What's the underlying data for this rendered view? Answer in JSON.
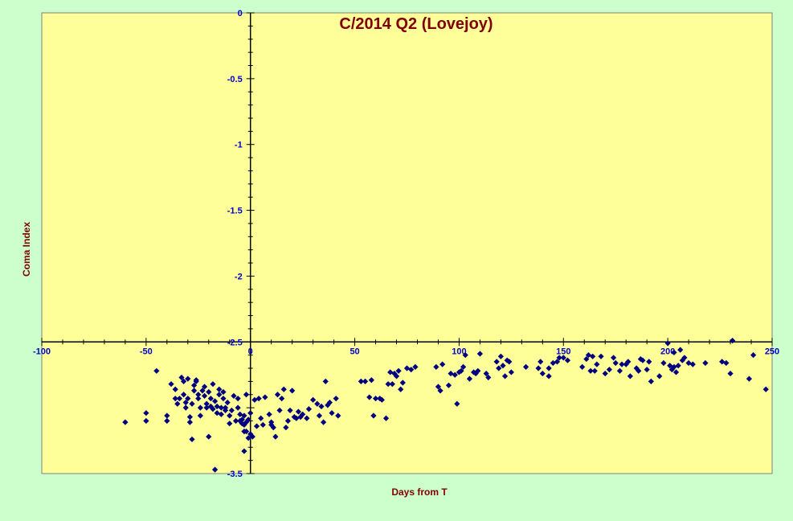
{
  "chart_data": {
    "type": "scatter",
    "title": "C/2014 Q2 (Lovejoy)",
    "xlabel": "Days from T",
    "ylabel": "Coma Index",
    "xlim": [
      -100,
      250
    ],
    "ylim": [
      -3.5,
      0
    ],
    "x_ticks": [
      -100,
      -50,
      0,
      50,
      100,
      150,
      200,
      250
    ],
    "y_ticks": [
      0,
      -0.5,
      -1,
      -1.5,
      -2,
      -2.5,
      -3.5
    ],
    "y_tick_labels": [
      "0",
      "-0.5",
      "-1",
      "-1.5",
      "-2",
      "-2.5",
      "-3.5"
    ],
    "grid": false,
    "legend": "none",
    "colors": {
      "plot_bg": "#ffff99",
      "page_bg": "#ccffcc",
      "marker": "#000080",
      "title": "#800000",
      "ticks": "#0000cc"
    },
    "marker": "diamond",
    "series": [
      {
        "points": [
          [
            -60,
            -3.11
          ],
          [
            -50,
            -3.04
          ],
          [
            -50,
            -3.1
          ],
          [
            -45,
            -2.72
          ],
          [
            -40,
            -3.06
          ],
          [
            -40,
            -3.1
          ],
          [
            -38,
            -2.82
          ],
          [
            -36,
            -2.86
          ],
          [
            -36,
            -2.93
          ],
          [
            -35,
            -2.97
          ],
          [
            -34,
            -2.93
          ],
          [
            -33,
            -2.77
          ],
          [
            -32,
            -2.8
          ],
          [
            -32,
            -2.9
          ],
          [
            -31,
            -2.96
          ],
          [
            -31,
            -3.0
          ],
          [
            -30,
            -2.78
          ],
          [
            -30,
            -2.93
          ],
          [
            -29,
            -3.07
          ],
          [
            -29,
            -3.11
          ],
          [
            -28,
            -3.24
          ],
          [
            -28,
            -2.97
          ],
          [
            -27,
            -2.87
          ],
          [
            -27,
            -2.83
          ],
          [
            -26,
            -2.8
          ],
          [
            -26,
            -2.79
          ],
          [
            -25,
            -2.93
          ],
          [
            -25,
            -2.9
          ],
          [
            -24,
            -3.06
          ],
          [
            -24,
            -3.0
          ],
          [
            -23,
            -2.87
          ],
          [
            -22,
            -2.84
          ],
          [
            -22,
            -2.91
          ],
          [
            -21,
            -2.97
          ],
          [
            -21,
            -3.0
          ],
          [
            -20,
            -3.22
          ],
          [
            -20,
            -2.88
          ],
          [
            -19,
            -2.93
          ],
          [
            -19,
            -2.99
          ],
          [
            -18,
            -3.01
          ],
          [
            -18,
            -2.82
          ],
          [
            -17,
            -3.47
          ],
          [
            -17,
            -2.95
          ],
          [
            -16,
            -2.99
          ],
          [
            -16,
            -3.04
          ],
          [
            -15,
            -2.86
          ],
          [
            -15,
            -2.9
          ],
          [
            -14,
            -3.0
          ],
          [
            -14,
            -3.05
          ],
          [
            -13,
            -2.93
          ],
          [
            -13,
            -2.88
          ],
          [
            -12,
            -3.02
          ],
          [
            -12,
            -3.0
          ],
          [
            -11,
            -2.96
          ],
          [
            -10,
            -3.06
          ],
          [
            -10,
            -3.12
          ],
          [
            -9,
            -3.02
          ],
          [
            -8,
            -2.91
          ],
          [
            -7,
            -3.1
          ],
          [
            -6,
            -2.93
          ],
          [
            -6,
            -3.0
          ],
          [
            -5,
            -3.05
          ],
          [
            -5,
            -3.1
          ],
          [
            -4,
            -3.09
          ],
          [
            -4,
            -3.12
          ],
          [
            -3,
            -3.06
          ],
          [
            -3,
            -3.13
          ],
          [
            -3,
            -3.18
          ],
          [
            -3,
            -3.33
          ],
          [
            -2,
            -2.9
          ],
          [
            -2,
            -3.11
          ],
          [
            -2,
            -3.18
          ],
          [
            -1,
            -3.23
          ],
          [
            -1,
            -3.09
          ],
          [
            0,
            -3.04
          ],
          [
            0,
            -3.2
          ],
          [
            1,
            -3.22
          ],
          [
            2,
            -2.94
          ],
          [
            3,
            -3.14
          ],
          [
            4,
            -2.93
          ],
          [
            5,
            -3.08
          ],
          [
            6,
            -3.13
          ],
          [
            7,
            -2.92
          ],
          [
            9,
            -3.05
          ],
          [
            10,
            -3.13
          ],
          [
            10,
            -3.11
          ],
          [
            11,
            -3.15
          ],
          [
            12,
            -3.22
          ],
          [
            13,
            -2.9
          ],
          [
            14,
            -3.02
          ],
          [
            15,
            -2.93
          ],
          [
            16,
            -2.86
          ],
          [
            17,
            -3.15
          ],
          [
            18,
            -3.1
          ],
          [
            19,
            -3.02
          ],
          [
            20,
            -2.87
          ],
          [
            21,
            -3.07
          ],
          [
            22,
            -3.08
          ],
          [
            23,
            -3.03
          ],
          [
            24,
            -3.07
          ],
          [
            25,
            -3.05
          ],
          [
            27,
            -3.08
          ],
          [
            28,
            -3.01
          ],
          [
            30,
            -2.94
          ],
          [
            32,
            -2.97
          ],
          [
            33,
            -3.06
          ],
          [
            34,
            -2.99
          ],
          [
            35,
            -3.11
          ],
          [
            36,
            -2.8
          ],
          [
            37,
            -2.98
          ],
          [
            38,
            -2.96
          ],
          [
            39,
            -3.04
          ],
          [
            41,
            -2.93
          ],
          [
            42,
            -3.06
          ],
          [
            53,
            -2.8
          ],
          [
            55,
            -2.8
          ],
          [
            57,
            -2.92
          ],
          [
            58,
            -2.79
          ],
          [
            59,
            -3.06
          ],
          [
            60,
            -2.93
          ],
          [
            62,
            -2.93
          ],
          [
            63,
            -2.94
          ],
          [
            65,
            -3.08
          ],
          [
            66,
            -2.82
          ],
          [
            67,
            -2.73
          ],
          [
            68,
            -2.82
          ],
          [
            69,
            -2.74
          ],
          [
            70,
            -2.76
          ],
          [
            71,
            -2.72
          ],
          [
            72,
            -2.86
          ],
          [
            73,
            -2.81
          ],
          [
            75,
            -2.7
          ],
          [
            77,
            -2.71
          ],
          [
            79,
            -2.69
          ],
          [
            89,
            -2.69
          ],
          [
            90,
            -2.84
          ],
          [
            91,
            -2.87
          ],
          [
            92,
            -2.67
          ],
          [
            95,
            -2.83
          ],
          [
            96,
            -2.74
          ],
          [
            98,
            -2.75
          ],
          [
            99,
            -2.97
          ],
          [
            100,
            -2.73
          ],
          [
            101,
            -2.72
          ],
          [
            102,
            -2.69
          ],
          [
            103,
            -2.6
          ],
          [
            105,
            -2.78
          ],
          [
            107,
            -2.73
          ],
          [
            108,
            -2.74
          ],
          [
            109,
            -2.72
          ],
          [
            110,
            -2.59
          ],
          [
            113,
            -2.74
          ],
          [
            114,
            -2.77
          ],
          [
            118,
            -2.65
          ],
          [
            119,
            -2.7
          ],
          [
            120,
            -2.61
          ],
          [
            121,
            -2.68
          ],
          [
            122,
            -2.76
          ],
          [
            123,
            -2.64
          ],
          [
            124,
            -2.65
          ],
          [
            125,
            -2.73
          ],
          [
            132,
            -2.69
          ],
          [
            138,
            -2.7
          ],
          [
            139,
            -2.65
          ],
          [
            140,
            -2.74
          ],
          [
            143,
            -2.76
          ],
          [
            143,
            -2.7
          ],
          [
            145,
            -2.66
          ],
          [
            147,
            -2.65
          ],
          [
            148,
            -2.62
          ],
          [
            150,
            -2.62
          ],
          [
            152,
            -2.64
          ],
          [
            159,
            -2.69
          ],
          [
            161,
            -2.63
          ],
          [
            162,
            -2.6
          ],
          [
            163,
            -2.72
          ],
          [
            164,
            -2.61
          ],
          [
            165,
            -2.72
          ],
          [
            166,
            -2.67
          ],
          [
            168,
            -2.61
          ],
          [
            170,
            -2.74
          ],
          [
            172,
            -2.71
          ],
          [
            174,
            -2.62
          ],
          [
            175,
            -2.66
          ],
          [
            177,
            -2.72
          ],
          [
            178,
            -2.67
          ],
          [
            180,
            -2.67
          ],
          [
            181,
            -2.65
          ],
          [
            182,
            -2.76
          ],
          [
            185,
            -2.7
          ],
          [
            186,
            -2.72
          ],
          [
            187,
            -2.63
          ],
          [
            188,
            -2.64
          ],
          [
            190,
            -2.71
          ],
          [
            191,
            -2.65
          ],
          [
            192,
            -2.8
          ],
          [
            196,
            -2.76
          ],
          [
            198,
            -2.66
          ],
          [
            200,
            -2.51
          ],
          [
            201,
            -2.68
          ],
          [
            202,
            -2.71
          ],
          [
            203,
            -2.69
          ],
          [
            203,
            -2.58
          ],
          [
            204,
            -2.73
          ],
          [
            205,
            -2.68
          ],
          [
            206,
            -2.56
          ],
          [
            207,
            -2.64
          ],
          [
            208,
            -2.62
          ],
          [
            210,
            -2.66
          ],
          [
            212,
            -2.67
          ],
          [
            218,
            -2.66
          ],
          [
            226,
            -2.65
          ],
          [
            228,
            -2.66
          ],
          [
            230,
            -2.74
          ],
          [
            231,
            -2.49
          ],
          [
            239,
            -2.78
          ],
          [
            241,
            -2.6
          ],
          [
            247,
            -2.86
          ]
        ]
      }
    ]
  }
}
